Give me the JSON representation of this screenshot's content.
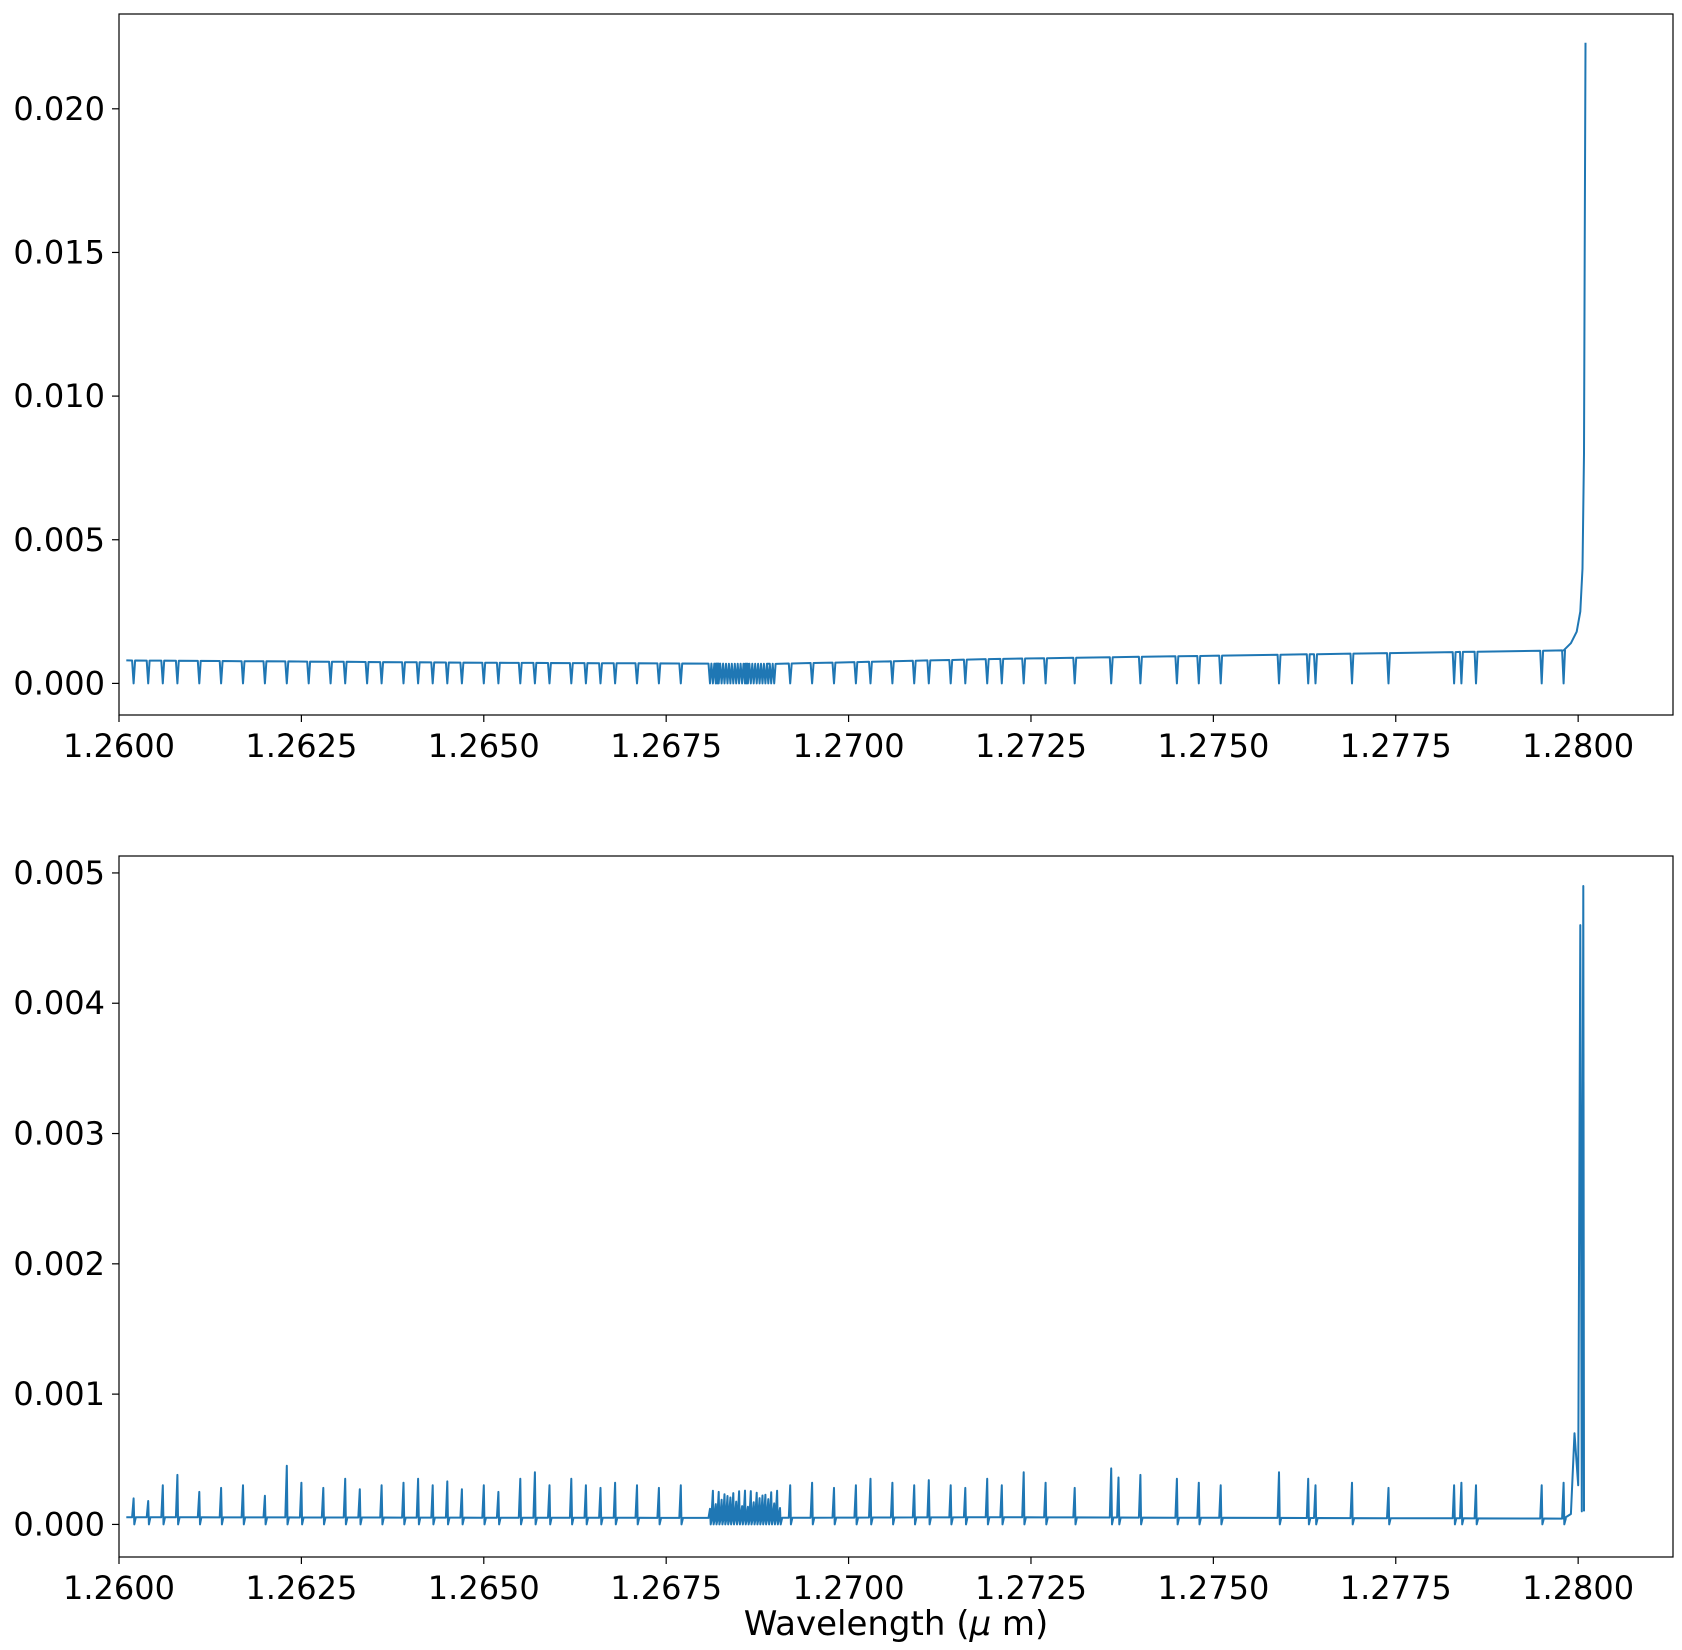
{
  "chart_data": [
    {
      "type": "line",
      "title": "",
      "xlabel": "",
      "ylabel": "",
      "xlim": [
        1.26,
        1.2813
      ],
      "ylim": [
        -0.0011,
        0.0233
      ],
      "x_ticks": [
        "1.2600",
        "1.2625",
        "1.2650",
        "1.2675",
        "1.2700",
        "1.2725",
        "1.2750",
        "1.2775",
        "1.2800"
      ],
      "y_ticks": [
        "0.000",
        "0.005",
        "0.010",
        "0.015",
        "0.020"
      ],
      "grid": false,
      "color": "#1f77b4",
      "series": [
        {
          "baseline": [
            [
              1.2601,
              0.0008
            ],
            [
              1.265,
              0.00072
            ],
            [
              1.269,
              0.00068
            ],
            [
              1.272,
              0.00085
            ],
            [
              1.276,
              0.001
            ],
            [
              1.2798,
              0.00115
            ]
          ],
          "rise": [
            [
              1.2798,
              0.00115
            ],
            [
              1.2799,
              0.0014
            ],
            [
              1.27998,
              0.0018
            ],
            [
              1.28003,
              0.0025
            ],
            [
              1.28006,
              0.004
            ],
            [
              1.28008,
              0.008
            ],
            [
              1.28009,
              0.015
            ],
            [
              1.2801,
              0.0223
            ]
          ],
          "dip_lines": [
            1.2602,
            1.2604,
            1.2606,
            1.2608,
            1.2611,
            1.2614,
            1.2617,
            1.262,
            1.2623,
            1.2626,
            1.2629,
            1.2631,
            1.2634,
            1.2636,
            1.2639,
            1.2641,
            1.2643,
            1.2645,
            1.2647,
            1.265,
            1.2652,
            1.2655,
            1.2657,
            1.2659,
            1.2662,
            1.2664,
            1.2666,
            1.2668,
            1.2671,
            1.2674,
            1.2677,
            1.2682,
            1.2686,
            1.2689,
            1.2692,
            1.2695,
            1.2698,
            1.2701,
            1.2703,
            1.2706,
            1.2709,
            1.2711,
            1.2714,
            1.2716,
            1.2719,
            1.2721,
            1.2724,
            1.2727,
            1.2731,
            1.2736,
            1.274,
            1.2745,
            1.2748,
            1.2751,
            1.2759,
            1.2763,
            1.2764,
            1.2769,
            1.2774,
            1.2783,
            1.2784,
            1.2786,
            1.2795,
            1.2798
          ],
          "dense_region": [
            1.2681,
            1.269
          ],
          "dip_depth": 0.0
        }
      ]
    },
    {
      "type": "line",
      "title": "",
      "xlabel": "Wavelength ($\\mu$ m)",
      "ylabel": "",
      "xlim": [
        1.26,
        1.2813
      ],
      "ylim": [
        -0.00025,
        0.00513
      ],
      "x_ticks": [
        "1.2600",
        "1.2625",
        "1.2650",
        "1.2675",
        "1.2700",
        "1.2725",
        "1.2750",
        "1.2775",
        "1.2800"
      ],
      "y_ticks": [
        "0.000",
        "0.001",
        "0.002",
        "0.003",
        "0.004",
        "0.005"
      ],
      "grid": false,
      "color": "#1f77b4",
      "series": [
        {
          "baseline": [
            [
              1.2601,
              5.5e-05
            ],
            [
              1.268,
              5e-05
            ],
            [
              1.272,
              5.5e-05
            ],
            [
              1.276,
              5e-05
            ],
            [
              1.2798,
              4.5e-05
            ]
          ],
          "spike_lines": [
            1.2602,
            1.2604,
            1.2606,
            1.2608,
            1.2611,
            1.2614,
            1.2617,
            1.262,
            1.2623,
            1.2625,
            1.2628,
            1.2631,
            1.2633,
            1.2636,
            1.2639,
            1.2641,
            1.2643,
            1.2645,
            1.2647,
            1.265,
            1.2652,
            1.2655,
            1.2657,
            1.2659,
            1.2662,
            1.2664,
            1.2666,
            1.2668,
            1.2671,
            1.2674,
            1.2677,
            1.2692,
            1.2695,
            1.2698,
            1.2701,
            1.2703,
            1.2706,
            1.2709,
            1.2711,
            1.2714,
            1.2716,
            1.2719,
            1.2721,
            1.2724,
            1.2727,
            1.2731,
            1.2736,
            1.2737,
            1.274,
            1.2745,
            1.2748,
            1.2751,
            1.2759,
            1.2763,
            1.2764,
            1.2769,
            1.2774,
            1.2783,
            1.2784,
            1.2786,
            1.2795,
            1.2798
          ],
          "spike_heights": [
            0.0002,
            0.00018,
            0.0003,
            0.00038,
            0.00025,
            0.00028,
            0.0003,
            0.00022,
            0.00045,
            0.00032,
            0.00028,
            0.00035,
            0.00027,
            0.0003,
            0.00032,
            0.00035,
            0.0003,
            0.00033,
            0.00027,
            0.0003,
            0.00025,
            0.00035,
            0.0004,
            0.0003,
            0.00035,
            0.0003,
            0.00028,
            0.00032,
            0.0003,
            0.00028,
            0.0003,
            0.0003,
            0.00032,
            0.00028,
            0.0003,
            0.00035,
            0.00032,
            0.0003,
            0.00034,
            0.0003,
            0.00028,
            0.00035,
            0.0003,
            0.0004,
            0.00032,
            0.00028,
            0.00043,
            0.00036,
            0.00038,
            0.00035,
            0.00032,
            0.0003,
            0.0004,
            0.00035,
            0.0003,
            0.00032,
            0.00028,
            0.0003,
            0.00032,
            0.0003,
            0.0003,
            0.00032
          ],
          "dense_region": [
            1.2681,
            1.2691
          ],
          "tail": [
            [
              1.2799,
              8e-05
            ],
            [
              1.27995,
              0.0007
            ],
            [
              1.28,
              0.0003
            ],
            [
              1.28003,
              0.0046
            ],
            [
              1.28005,
              0.0001
            ],
            [
              1.28007,
              0.0049
            ],
            [
              1.28008,
              0.0001
            ]
          ]
        }
      ]
    }
  ]
}
